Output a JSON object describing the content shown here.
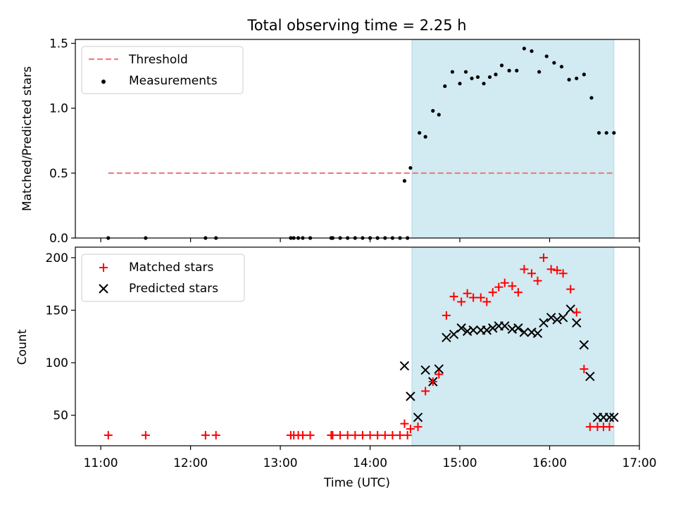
{
  "chart_data": [
    {
      "type": "scatter",
      "title": "Total observing time = 2.25 h",
      "ylabel": "Matched/Predicted stars",
      "xlabel": "",
      "xlim": [
        "10:43",
        "17:00"
      ],
      "ylim": [
        0,
        1.53
      ],
      "yticks": [
        0,
        0.5,
        1.0,
        1.5
      ],
      "ytick_labels": [
        "0.0",
        "0.5",
        "1.0",
        "1.5"
      ],
      "shaded_region": [
        "14:28",
        "16:43"
      ],
      "threshold": {
        "name": "Threshold",
        "value": 0.5,
        "x_range": [
          "11:05",
          "16:43"
        ],
        "color": "#f08080",
        "style": "dashed"
      },
      "legend": {
        "placement": "top-left",
        "entries": [
          "Threshold",
          "Measurements"
        ]
      },
      "series": [
        {
          "name": "Measurements",
          "color": "#000000",
          "x": [
            "11:05",
            "11:30",
            "12:10",
            "12:17",
            "13:07",
            "13:09",
            "13:12",
            "13:15",
            "13:20",
            "13:34",
            "13:35",
            "13:40",
            "13:45",
            "13:50",
            "13:55",
            "14:00",
            "14:05",
            "14:10",
            "14:15",
            "14:20",
            "14:25",
            "14:23",
            "14:27",
            "14:33",
            "14:37",
            "14:42",
            "14:46",
            "14:50",
            "14:55",
            "15:00",
            "15:04",
            "15:08",
            "15:12",
            "15:16",
            "15:20",
            "15:24",
            "15:28",
            "15:33",
            "15:38",
            "15:43",
            "15:48",
            "15:53",
            "15:58",
            "16:03",
            "16:08",
            "16:13",
            "16:18",
            "16:23",
            "16:28",
            "16:33",
            "16:38",
            "16:43"
          ],
          "y": [
            0,
            0,
            0,
            0,
            0,
            0,
            0,
            0,
            0,
            0,
            0,
            0,
            0,
            0,
            0,
            0,
            0,
            0,
            0,
            0,
            0,
            0.44,
            0.54,
            0.81,
            0.78,
            0.98,
            0.95,
            1.17,
            1.28,
            1.19,
            1.28,
            1.23,
            1.24,
            1.19,
            1.24,
            1.26,
            1.33,
            1.29,
            1.29,
            1.46,
            1.44,
            1.28,
            1.4,
            1.35,
            1.32,
            1.22,
            1.23,
            1.26,
            1.08,
            0.81,
            0.81,
            0.81
          ]
        }
      ]
    },
    {
      "type": "scatter",
      "title": "",
      "ylabel": "Count",
      "xlabel": "Time (UTC)",
      "xlim": [
        "10:43",
        "17:00"
      ],
      "ylim": [
        21,
        210
      ],
      "yticks": [
        50,
        100,
        150,
        200
      ],
      "ytick_labels": [
        "50",
        "100",
        "150",
        "200"
      ],
      "xticks": [
        "11:00",
        "12:00",
        "13:00",
        "14:00",
        "15:00",
        "16:00",
        "17:00"
      ],
      "shaded_region": [
        "14:28",
        "16:43"
      ],
      "legend": {
        "placement": "top-left",
        "entries": [
          "Matched stars",
          "Predicted stars"
        ]
      },
      "series": [
        {
          "name": "Matched stars",
          "color": "#ff0000",
          "marker": "plus",
          "x": [
            "11:05",
            "11:30",
            "12:10",
            "12:17",
            "13:07",
            "13:09",
            "13:12",
            "13:15",
            "13:20",
            "13:34",
            "13:35",
            "13:40",
            "13:45",
            "13:50",
            "13:55",
            "14:00",
            "14:05",
            "14:10",
            "14:15",
            "14:20",
            "14:25",
            "14:23",
            "14:27",
            "14:32",
            "14:37",
            "14:42",
            "14:46",
            "14:51",
            "14:56",
            "15:01",
            "15:05",
            "15:09",
            "15:14",
            "15:18",
            "15:22",
            "15:26",
            "15:30",
            "15:35",
            "15:39",
            "15:43",
            "15:48",
            "15:52",
            "15:56",
            "16:01",
            "16:05",
            "16:09",
            "16:14",
            "16:18",
            "16:23",
            "16:27",
            "16:32",
            "16:36",
            "16:40"
          ],
          "y": [
            31,
            31,
            31,
            31,
            31,
            31,
            31,
            31,
            31,
            31,
            31,
            31,
            31,
            31,
            31,
            31,
            31,
            31,
            31,
            31,
            31,
            42,
            37,
            39,
            73,
            82,
            89,
            145,
            163,
            158,
            166,
            162,
            162,
            158,
            167,
            172,
            176,
            173,
            167,
            189,
            185,
            178,
            200,
            189,
            188,
            185,
            170,
            148,
            94,
            39,
            39,
            39,
            39
          ]
        },
        {
          "name": "Predicted stars",
          "color": "#000000",
          "marker": "x",
          "x": [
            "14:23",
            "14:27",
            "14:32",
            "14:37",
            "14:42",
            "14:46",
            "14:51",
            "14:56",
            "15:01",
            "15:05",
            "15:09",
            "15:14",
            "15:18",
            "15:22",
            "15:26",
            "15:30",
            "15:35",
            "15:39",
            "15:43",
            "15:48",
            "15:52",
            "15:56",
            "16:01",
            "16:05",
            "16:09",
            "16:14",
            "16:18",
            "16:23",
            "16:27",
            "16:32",
            "16:36",
            "16:40",
            "16:43"
          ],
          "y": [
            97,
            68,
            48,
            93,
            82,
            94,
            124,
            127,
            133,
            130,
            131,
            131,
            131,
            133,
            135,
            135,
            132,
            133,
            129,
            129,
            128,
            138,
            143,
            141,
            143,
            151,
            138,
            117,
            87,
            48,
            48,
            48,
            48
          ]
        }
      ]
    }
  ]
}
